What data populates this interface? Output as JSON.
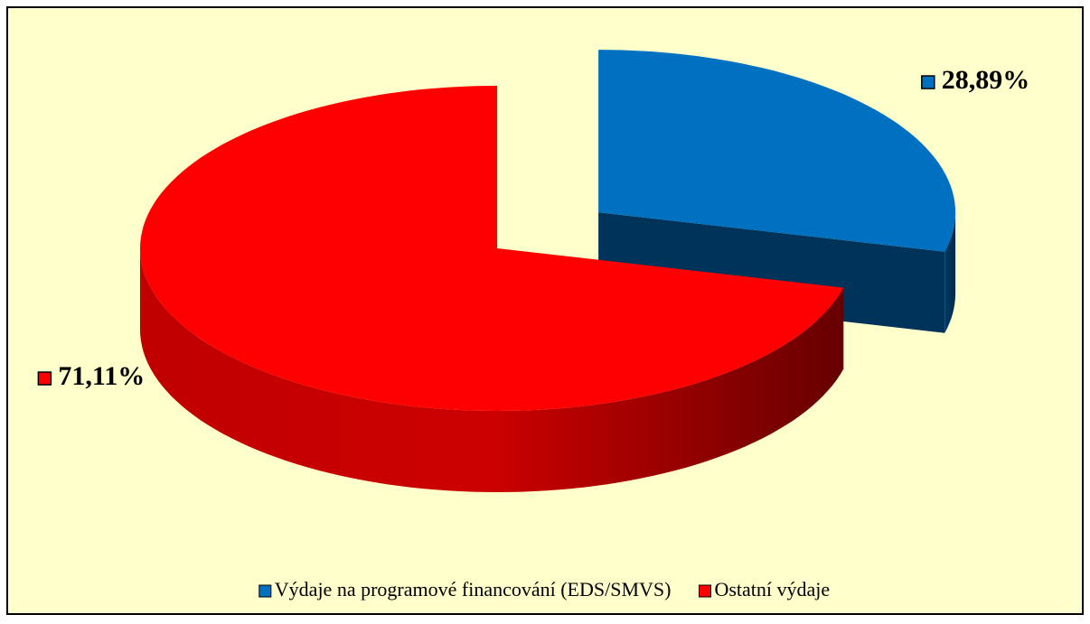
{
  "chart_data": {
    "type": "pie",
    "categories": [
      "Výdaje na programové financování (EDS/SMVS)",
      "Ostatní výdaje"
    ],
    "values": [
      28.89,
      71.11
    ],
    "value_labels": [
      "28,89%",
      "71,11%"
    ],
    "colors": [
      "#0070c0",
      "#ff0000"
    ],
    "legend": "bottom"
  }
}
